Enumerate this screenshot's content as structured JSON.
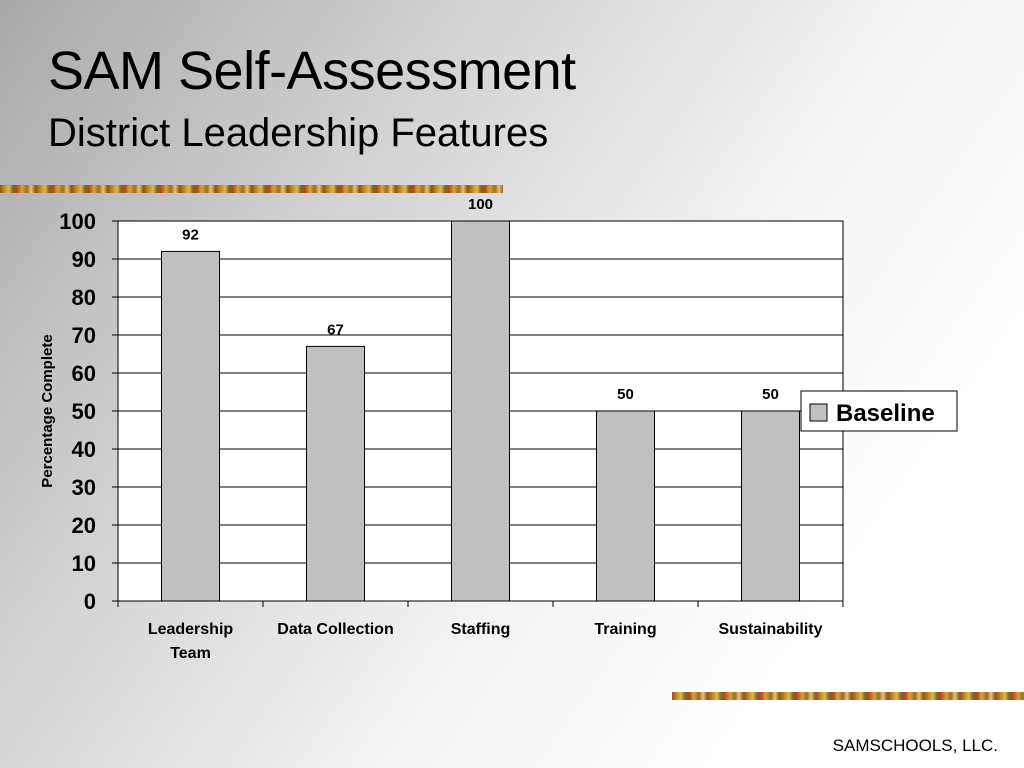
{
  "title": "SAM Self-Assessment",
  "subtitle": "District Leadership Features",
  "footer": "SAMSCHOOLS, LLC.",
  "chart_data": {
    "type": "bar",
    "categories": [
      [
        "Leadership",
        "Team"
      ],
      [
        "Data Collection"
      ],
      [
        "Staffing"
      ],
      [
        "Training"
      ],
      [
        "Sustainability"
      ]
    ],
    "series": [
      {
        "name": "Baseline",
        "values": [
          92,
          67,
          100,
          50,
          50
        ]
      }
    ],
    "data_labels": [
      "92",
      "67",
      "100",
      "50",
      "50"
    ],
    "ylabel": "Percentage Complete",
    "ylim": [
      0,
      100
    ],
    "yticks": [
      "0",
      "10",
      "20",
      "30",
      "40",
      "50",
      "60",
      "70",
      "80",
      "90",
      "100"
    ],
    "grid": true,
    "legend": "right",
    "colors": {
      "bar": "#c0c0c0",
      "bar_stroke": "#000000",
      "plot_bg": "#ffffff",
      "gridline": "#000000"
    }
  }
}
